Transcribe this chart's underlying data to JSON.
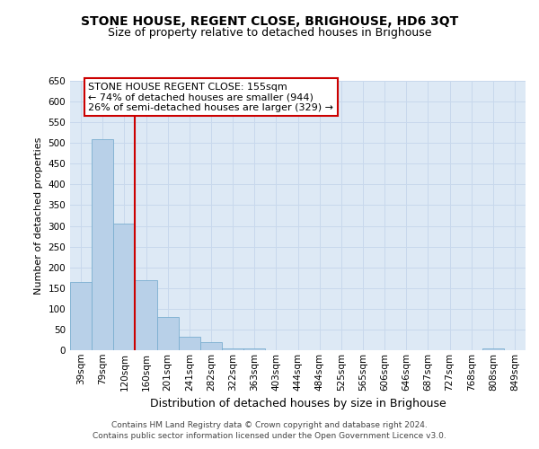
{
  "title": "STONE HOUSE, REGENT CLOSE, BRIGHOUSE, HD6 3QT",
  "subtitle": "Size of property relative to detached houses in Brighouse",
  "xlabel": "Distribution of detached houses by size in Brighouse",
  "ylabel": "Number of detached properties",
  "bar_labels": [
    "39sqm",
    "79sqm",
    "120sqm",
    "160sqm",
    "201sqm",
    "241sqm",
    "282sqm",
    "322sqm",
    "363sqm",
    "403sqm",
    "444sqm",
    "484sqm",
    "525sqm",
    "565sqm",
    "606sqm",
    "646sqm",
    "687sqm",
    "727sqm",
    "768sqm",
    "808sqm",
    "849sqm"
  ],
  "bar_values": [
    165,
    510,
    305,
    170,
    80,
    33,
    20,
    5,
    5,
    0,
    0,
    0,
    0,
    0,
    0,
    0,
    0,
    0,
    0,
    5,
    0
  ],
  "bar_color": "#b8d0e8",
  "bar_edge_color": "#7aaed0",
  "grid_color": "#c8d8ec",
  "background_color": "#dde9f5",
  "vline_color": "#cc0000",
  "annotation_text": "STONE HOUSE REGENT CLOSE: 155sqm\n← 74% of detached houses are smaller (944)\n26% of semi-detached houses are larger (329) →",
  "annotation_box_facecolor": "#ffffff",
  "annotation_box_edgecolor": "#cc0000",
  "ylim": [
    0,
    650
  ],
  "yticks": [
    0,
    50,
    100,
    150,
    200,
    250,
    300,
    350,
    400,
    450,
    500,
    550,
    600,
    650
  ],
  "footer_line1": "Contains HM Land Registry data © Crown copyright and database right 2024.",
  "footer_line2": "Contains public sector information licensed under the Open Government Licence v3.0.",
  "title_fontsize": 10,
  "subtitle_fontsize": 9,
  "xlabel_fontsize": 9,
  "ylabel_fontsize": 8,
  "tick_fontsize": 7.5,
  "footer_fontsize": 6.5
}
